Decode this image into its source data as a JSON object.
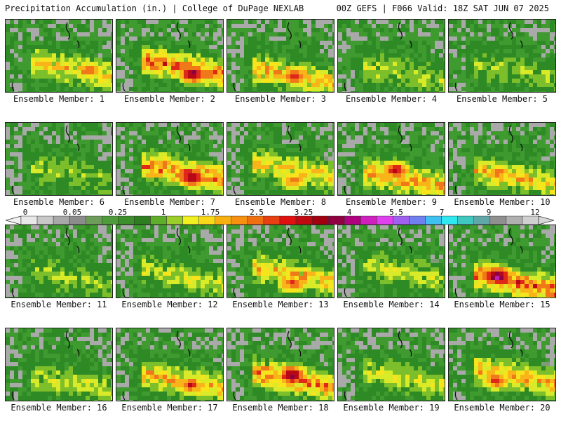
{
  "header": {
    "title": "Precipitation Accumulation (in.) | College of DuPage NEXLAB",
    "run_info": "00Z GEFS | F066 Valid: 18Z SAT JUN 07 2025"
  },
  "panels": [
    {
      "label": "Ensemble Member: 1",
      "max": 3.0
    },
    {
      "label": "Ensemble Member: 2",
      "max": 4.5
    },
    {
      "label": "Ensemble Member: 3",
      "max": 3.5
    },
    {
      "label": "Ensemble Member: 4",
      "max": 1.6
    },
    {
      "label": "Ensemble Member: 5",
      "max": 1.5
    },
    {
      "label": "Ensemble Member: 6",
      "max": 1.2
    },
    {
      "label": "Ensemble Member: 7",
      "max": 4.5
    },
    {
      "label": "Ensemble Member: 8",
      "max": 3.0
    },
    {
      "label": "Ensemble Member: 9",
      "max": 3.8
    },
    {
      "label": "Ensemble Member: 10",
      "max": 3.0
    },
    {
      "label": "Ensemble Member: 11",
      "max": 1.4
    },
    {
      "label": "Ensemble Member: 12",
      "max": 1.9
    },
    {
      "label": "Ensemble Member: 13",
      "max": 3.3
    },
    {
      "label": "Ensemble Member: 14",
      "max": 1.7
    },
    {
      "label": "Ensemble Member: 15",
      "max": 5.0
    },
    {
      "label": "Ensemble Member: 16",
      "max": 1.8
    },
    {
      "label": "Ensemble Member: 17",
      "max": 3.5
    },
    {
      "label": "Ensemble Member: 18",
      "max": 4.5
    },
    {
      "label": "Ensemble Member: 19",
      "max": 2.0
    },
    {
      "label": "Ensemble Member: 20",
      "max": 3.5
    }
  ],
  "colorbar": {
    "ticks": [
      "0",
      "0.05",
      "0.25",
      "1",
      "1.75",
      "2.5",
      "3.25",
      "4",
      "5.5",
      "7",
      "9",
      "12"
    ],
    "colors": [
      "#e8e8e8",
      "#c8c8c8",
      "#a8a8a8",
      "#8c8c8c",
      "#6e9c5a",
      "#4f9a3a",
      "#3c8f2a",
      "#2e7d20",
      "#5fae2a",
      "#9cce2a",
      "#f0f020",
      "#f8d818",
      "#f8b010",
      "#f89010",
      "#f07010",
      "#e84010",
      "#e01010",
      "#c00810",
      "#a00010",
      "#900040",
      "#b00080",
      "#d020c0",
      "#e040f0",
      "#a060f0",
      "#7080f0",
      "#40c0f0",
      "#30e8f0",
      "#40c8c0",
      "#60a8a8",
      "#909090",
      "#b0b0b0",
      "#d0d0d0"
    ]
  }
}
